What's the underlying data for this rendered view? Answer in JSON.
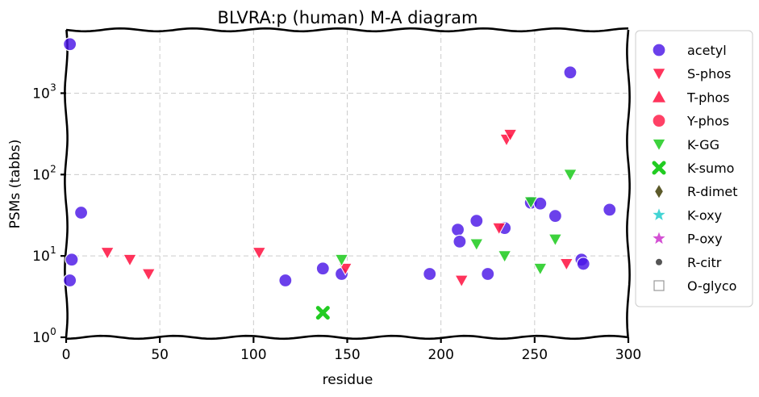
{
  "chart_data": {
    "type": "scatter",
    "title": "BLVRA:p (human) M-A diagram",
    "xlabel": "residue",
    "ylabel": "PSMs (tabbs)",
    "xlim": [
      0,
      300
    ],
    "ylim": [
      1,
      6000
    ],
    "y_scale": "log",
    "grid": true,
    "legend_position": "outside-right",
    "x_ticks": [
      0,
      50,
      100,
      150,
      200,
      250,
      300
    ],
    "y_ticks": [
      {
        "value": 1,
        "base": "10",
        "exp": "0"
      },
      {
        "value": 10,
        "base": "10",
        "exp": "1"
      },
      {
        "value": 100,
        "base": "10",
        "exp": "2"
      },
      {
        "value": 1000,
        "base": "10",
        "exp": "3"
      }
    ],
    "series": [
      {
        "name": "acetyl",
        "marker": "circle",
        "color": "#4a16e6",
        "points": [
          [
            2,
            4000
          ],
          [
            3,
            9
          ],
          [
            2,
            5
          ],
          [
            8,
            34
          ],
          [
            117,
            5
          ],
          [
            137,
            7
          ],
          [
            147,
            6
          ],
          [
            194,
            6
          ],
          [
            209,
            21
          ],
          [
            210,
            15
          ],
          [
            219,
            27
          ],
          [
            225,
            6
          ],
          [
            234,
            22
          ],
          [
            248,
            45
          ],
          [
            253,
            44
          ],
          [
            261,
            31
          ],
          [
            269,
            1800
          ],
          [
            275,
            9
          ],
          [
            276,
            8
          ],
          [
            290,
            37
          ]
        ]
      },
      {
        "name": "S-phos",
        "marker": "triangle-down",
        "color": "#ff1744",
        "points": [
          [
            22,
            11
          ],
          [
            34,
            9
          ],
          [
            44,
            6
          ],
          [
            103,
            11
          ],
          [
            149,
            7
          ],
          [
            211,
            5
          ],
          [
            231,
            22
          ],
          [
            235,
            270
          ],
          [
            237,
            310
          ],
          [
            267,
            8
          ]
        ]
      },
      {
        "name": "T-phos",
        "marker": "triangle-up",
        "color": "#ff1744",
        "points": []
      },
      {
        "name": "Y-phos",
        "marker": "circle",
        "color": "#ff1744",
        "points": []
      },
      {
        "name": "K-GG",
        "marker": "triangle-down",
        "color": "#22cc22",
        "points": [
          [
            147,
            9
          ],
          [
            219,
            14
          ],
          [
            234,
            10
          ],
          [
            248,
            46
          ],
          [
            253,
            7
          ],
          [
            261,
            16
          ],
          [
            269,
            100
          ]
        ]
      },
      {
        "name": "K-sumo",
        "marker": "x",
        "color": "#22cc22",
        "points": [
          [
            137,
            2
          ]
        ]
      },
      {
        "name": "R-dimet",
        "marker": "diamond",
        "color": "#5c5a2a",
        "points": []
      },
      {
        "name": "K-oxy",
        "marker": "star",
        "color": "#22cccc",
        "points": []
      },
      {
        "name": "P-oxy",
        "marker": "star",
        "color": "#cc33cc",
        "points": []
      },
      {
        "name": "R-citr",
        "marker": "small-circle",
        "color": "#555555",
        "points": []
      },
      {
        "name": "O-glyco",
        "marker": "square-open",
        "color": "#999999",
        "points": []
      }
    ]
  }
}
